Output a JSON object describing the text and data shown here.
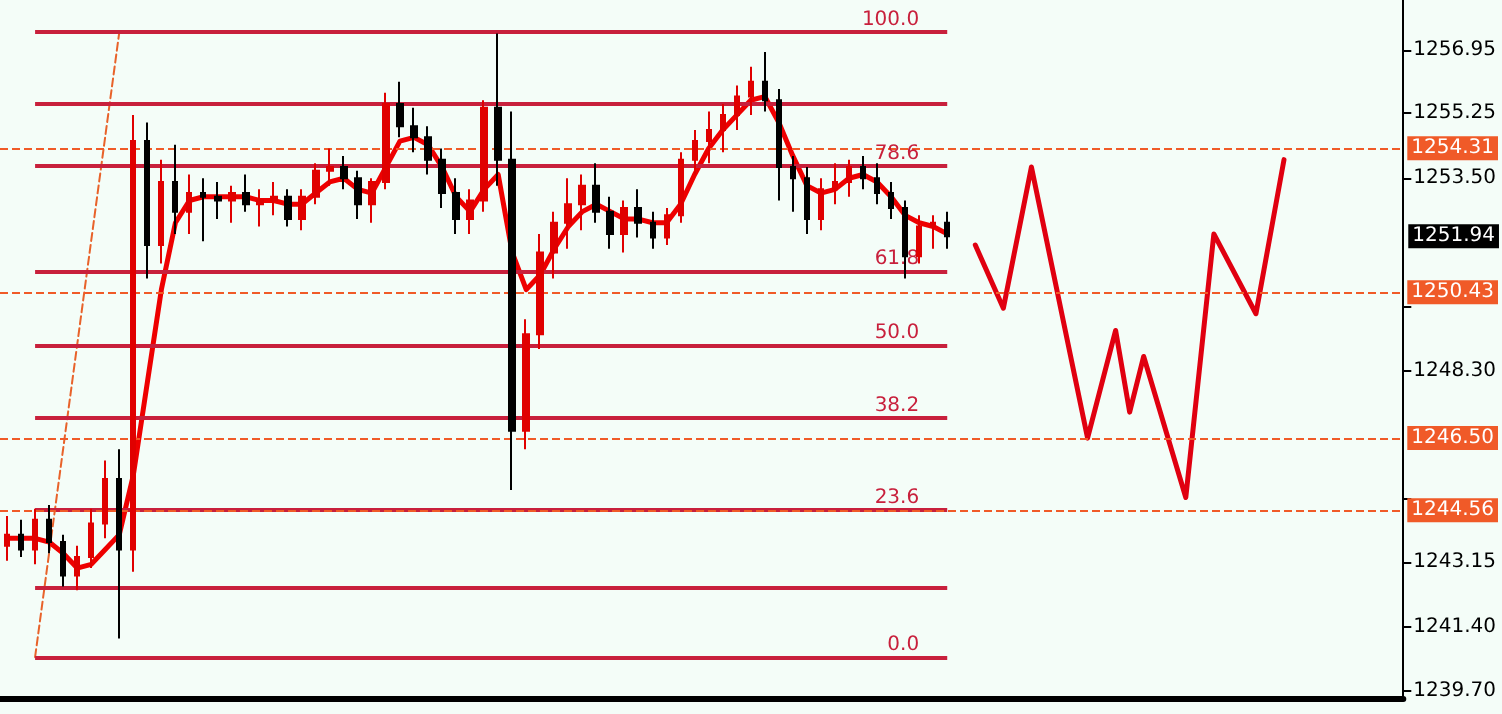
{
  "chart_data": {
    "type": "candlestick",
    "categories": [
      null,
      null,
      null,
      null,
      null,
      null,
      null,
      null,
      null,
      null,
      null,
      null,
      null,
      null,
      null,
      null,
      null,
      null,
      null,
      null,
      null,
      null,
      null,
      null,
      null,
      null,
      null,
      null,
      null,
      null,
      null,
      null,
      null,
      null,
      null,
      null,
      null,
      null,
      null,
      null,
      null,
      null,
      null,
      null,
      null,
      null,
      null,
      null,
      null,
      null,
      null,
      null,
      null,
      null,
      null,
      null,
      null,
      null,
      null,
      null,
      null,
      null,
      null,
      null,
      null,
      null,
      null,
      null,
      null,
      null,
      null,
      null,
      null,
      null,
      null,
      null,
      null,
      null,
      null,
      null,
      null,
      null,
      null,
      null,
      null,
      null,
      null,
      null,
      null,
      null,
      null,
      null,
      null,
      null,
      null,
      null,
      null,
      null,
      null,
      null
    ],
    "ylim": [
      1239.5,
      1258.3
    ],
    "yticks": [
      1256.95,
      1255.25,
      {
        "value": 1253.5,
        "label": "1253.50"
      },
      {
        "value": 1250.05,
        "label": null
      },
      {
        "value": 1248.3,
        "label": "1248.30"
      },
      {
        "value": 1244.85,
        "label": null
      },
      1243.15,
      {
        "value": 1241.4,
        "label": "1241.40"
      },
      {
        "value": 1239.7,
        "label": "1239.70"
      }
    ],
    "tick_labels": "y",
    "grid": false,
    "series": [
      {
        "colors": [
          "#e00000",
          "#000000",
          "#e00000",
          "#000000",
          "#000000",
          "#e00000",
          "#e00000",
          "#e00000",
          "#000000",
          "#e00000",
          "#000000",
          "#e00000",
          "#000000",
          "#e00000",
          "#000000",
          "#000000",
          "#e00000",
          "#000000",
          "#e00000",
          "#e00000",
          "#000000",
          "#e00000",
          "#e00000",
          "#e00000",
          "#000000",
          "#000000",
          "#e00000",
          "#e00000",
          "#000000",
          "#000000",
          "#000000",
          "#000000",
          "#000000",
          "#e00000",
          "#e00000",
          "#000000",
          "#000000",
          "#e00000",
          "#e00000",
          "#e00000",
          "#e00000",
          "#e00000",
          "#000000",
          "#000000",
          "#e00000",
          "#000000",
          "#000000",
          "#e00000",
          "#e00000",
          "#e00000",
          "#e00000",
          "#e00000",
          "#e00000",
          "#e00000",
          "#000000",
          "#000000",
          "#000000",
          "#000000",
          "#e00000",
          "#e00000",
          "#e00000",
          "#000000",
          "#000000",
          "#000000",
          "#000000",
          "#e00000",
          "#e00000",
          "#000000",
          null,
          null,
          null,
          null,
          null,
          null,
          null,
          null,
          null,
          null,
          null,
          null,
          null,
          null,
          null,
          null,
          null,
          null,
          null,
          null,
          null,
          null,
          null,
          null,
          null,
          null,
          null,
          null,
          null,
          null,
          null,
          null
        ],
        "ohlc": [
          [
            1243.6,
            1244.4,
            1243.2,
            1243.9
          ],
          [
            1243.9,
            1244.3,
            1243.3,
            1243.5
          ],
          [
            1243.5,
            1244.6,
            1243.1,
            1244.3
          ],
          [
            1244.3,
            1244.7,
            1243.4,
            1243.7
          ],
          [
            1243.7,
            1243.9,
            1242.5,
            1242.8
          ],
          [
            1242.8,
            1243.6,
            1242.4,
            1243.3
          ],
          [
            1243.3,
            1244.6,
            1243.0,
            1244.2
          ],
          [
            1244.2,
            1245.9,
            1243.8,
            1245.4
          ],
          [
            1245.4,
            1246.2,
            1241.1,
            1243.5
          ],
          [
            1243.5,
            1255.2,
            1242.9,
            1254.5
          ],
          [
            1254.5,
            1255.0,
            1250.8,
            1251.7
          ],
          [
            1251.7,
            1254.0,
            1251.2,
            1253.4
          ],
          [
            1253.4,
            1254.4,
            1252.0,
            1252.6
          ],
          [
            1252.6,
            1253.6,
            1252.0,
            1253.1
          ],
          [
            1253.1,
            1253.5,
            1251.8,
            1253.0
          ],
          [
            1253.0,
            1253.4,
            1252.4,
            1252.9
          ],
          [
            1252.9,
            1253.3,
            1252.3,
            1253.1
          ],
          [
            1253.1,
            1253.6,
            1252.6,
            1252.8
          ],
          [
            1252.8,
            1253.2,
            1252.2,
            1252.9
          ],
          [
            1252.9,
            1253.4,
            1252.5,
            1253.0
          ],
          [
            1253.0,
            1253.2,
            1252.2,
            1252.4
          ],
          [
            1252.4,
            1253.2,
            1252.1,
            1253.0
          ],
          [
            1253.0,
            1253.9,
            1252.8,
            1253.7
          ],
          [
            1253.7,
            1254.3,
            1253.3,
            1253.8
          ],
          [
            1253.8,
            1254.1,
            1253.2,
            1253.5
          ],
          [
            1253.5,
            1253.7,
            1252.4,
            1252.8
          ],
          [
            1252.8,
            1253.5,
            1252.3,
            1253.4
          ],
          [
            1253.4,
            1255.8,
            1253.2,
            1255.5
          ],
          [
            1255.5,
            1256.1,
            1254.6,
            1254.9
          ],
          [
            1254.9,
            1255.4,
            1254.2,
            1254.6
          ],
          [
            1254.6,
            1254.9,
            1253.6,
            1254.0
          ],
          [
            1254.0,
            1254.3,
            1252.7,
            1253.1
          ],
          [
            1253.1,
            1253.5,
            1252.0,
            1252.4
          ],
          [
            1252.4,
            1253.2,
            1252.0,
            1252.9
          ],
          [
            1252.9,
            1255.6,
            1252.6,
            1255.4
          ],
          [
            1255.4,
            1257.4,
            1253.3,
            1254.0
          ],
          [
            1254.0,
            1255.3,
            1245.1,
            1246.7
          ],
          [
            1246.7,
            1249.7,
            1246.2,
            1249.3
          ],
          [
            1249.3,
            1252.0,
            1248.9,
            1251.5
          ],
          [
            1251.5,
            1252.6,
            1250.8,
            1252.3
          ],
          [
            1252.3,
            1253.5,
            1251.6,
            1252.8
          ],
          [
            1252.8,
            1253.6,
            1252.1,
            1253.3
          ],
          [
            1253.3,
            1253.9,
            1252.3,
            1252.6
          ],
          [
            1252.6,
            1253.0,
            1251.6,
            1252.0
          ],
          [
            1252.0,
            1252.9,
            1251.5,
            1252.7
          ],
          [
            1252.7,
            1253.2,
            1251.9,
            1252.3
          ],
          [
            1252.3,
            1252.6,
            1251.6,
            1251.9
          ],
          [
            1251.9,
            1252.7,
            1251.7,
            1252.5
          ],
          [
            1252.5,
            1254.2,
            1252.3,
            1254.0
          ],
          [
            1254.0,
            1254.8,
            1253.6,
            1254.5
          ],
          [
            1254.5,
            1255.3,
            1253.9,
            1254.8
          ],
          [
            1254.8,
            1255.5,
            1254.2,
            1255.2
          ],
          [
            1255.2,
            1256.0,
            1254.8,
            1255.7
          ],
          [
            1255.7,
            1256.5,
            1255.2,
            1256.1
          ],
          [
            1256.1,
            1256.9,
            1255.3,
            1255.6
          ],
          [
            1255.6,
            1255.9,
            1252.9,
            1253.8
          ],
          [
            1253.8,
            1254.1,
            1252.6,
            1253.5
          ],
          [
            1253.5,
            1253.8,
            1252.0,
            1252.4
          ],
          [
            1252.4,
            1253.5,
            1252.1,
            1253.2
          ],
          [
            1253.2,
            1253.9,
            1252.8,
            1253.4
          ],
          [
            1253.4,
            1254.0,
            1253.0,
            1253.8
          ],
          [
            1253.8,
            1254.1,
            1253.2,
            1253.5
          ],
          [
            1253.5,
            1253.9,
            1252.8,
            1253.1
          ],
          [
            1253.1,
            1253.4,
            1252.4,
            1252.7
          ],
          [
            1252.7,
            1252.9,
            1250.8,
            1251.4
          ],
          [
            1251.4,
            1252.5,
            1251.2,
            1252.2
          ],
          [
            1252.2,
            1252.5,
            1251.6,
            1252.3
          ],
          [
            1252.3,
            1252.6,
            1251.6,
            1251.94
          ],
          null,
          null,
          null,
          null,
          null,
          null,
          null,
          null,
          null,
          null,
          null,
          null,
          null,
          null,
          null,
          null,
          null,
          null,
          null,
          null,
          null,
          null,
          null,
          null,
          null,
          null,
          null,
          null,
          null,
          null,
          null,
          null
        ]
      },
      {
        "type": "line",
        "color": "#ee0000",
        "values": [
          1243.8,
          1243.8,
          1243.8,
          1243.7,
          1243.4,
          1243.0,
          1243.1,
          1243.5,
          1243.9,
          1245.5,
          1248.0,
          1250.5,
          1252.3,
          1252.9,
          1253.0,
          1253.0,
          1253.0,
          1253.0,
          1252.9,
          1252.9,
          1252.8,
          1252.8,
          1253.1,
          1253.4,
          1253.5,
          1253.2,
          1253.1,
          1253.8,
          1254.5,
          1254.6,
          1254.4,
          1253.8,
          1253.0,
          1252.6,
          1253.2,
          1253.6,
          1251.5,
          1250.5,
          1250.9,
          1251.6,
          1252.2,
          1252.6,
          1252.8,
          1252.6,
          1252.4,
          1252.4,
          1252.3,
          1252.3,
          1252.8,
          1253.6,
          1254.3,
          1254.8,
          1255.2,
          1255.6,
          1255.7,
          1255.0,
          1254.1,
          1253.3,
          1253.1,
          1253.2,
          1253.5,
          1253.6,
          1253.4,
          1253.0,
          1252.5,
          1252.3,
          1252.2,
          1252.0,
          null,
          null,
          null,
          null,
          null,
          null,
          null,
          null,
          null,
          null,
          null,
          null,
          null,
          null,
          null,
          null,
          null,
          null,
          null,
          null,
          null,
          null,
          null,
          null,
          null,
          null,
          null,
          null,
          null,
          null,
          null,
          null
        ]
      },
      {
        "type": "line",
        "color": "#e8622a",
        "line_style": "dashed",
        "values": [
          null,
          null,
          1240.6,
          null,
          null,
          null,
          null,
          null,
          1257.43,
          null,
          null,
          null,
          null,
          null,
          null,
          null,
          null,
          null,
          null,
          null,
          null,
          null,
          null,
          null,
          null,
          null,
          null,
          null,
          null,
          null,
          null,
          null,
          null,
          null,
          null,
          null,
          null,
          null,
          null,
          null,
          null,
          null,
          null,
          null,
          null,
          null,
          null,
          null,
          null,
          null,
          null,
          null,
          null,
          null,
          null,
          null,
          null,
          null,
          null,
          null,
          null,
          null,
          null,
          null,
          null,
          null,
          null,
          null,
          null,
          null,
          null,
          null,
          null,
          null,
          null,
          null,
          null,
          null,
          null,
          null,
          null,
          null,
          null,
          null,
          null,
          null,
          null,
          null,
          null,
          null,
          null,
          null,
          null,
          null,
          null,
          null,
          null,
          null,
          null,
          null
        ]
      },
      {
        "type": "line",
        "color": "#e00010",
        "values": [
          null,
          null,
          null,
          null,
          null,
          null,
          null,
          null,
          null,
          null,
          null,
          null,
          null,
          null,
          null,
          null,
          null,
          null,
          null,
          null,
          null,
          null,
          null,
          null,
          null,
          null,
          null,
          null,
          null,
          null,
          null,
          null,
          null,
          null,
          null,
          null,
          null,
          null,
          null,
          null,
          null,
          null,
          null,
          null,
          null,
          null,
          null,
          null,
          null,
          null,
          null,
          null,
          null,
          null,
          null,
          null,
          null,
          null,
          null,
          null,
          null,
          null,
          null,
          null,
          null,
          null,
          null,
          null,
          null,
          1251.7,
          null,
          1250.0,
          null,
          1253.8,
          null,
          null,
          null,
          1246.5,
          null,
          1249.4,
          1247.2,
          1248.7,
          null,
          null,
          1244.9,
          null,
          1252.0,
          null,
          null,
          1249.85,
          null,
          1254.0,
          null,
          null,
          null,
          null,
          null,
          null,
          null,
          null
        ]
      }
    ],
    "ref_lines": [
      {
        "axis": "y",
        "value": 1257.43,
        "color": "#c8203c",
        "line_style": "solid"
      },
      {
        "axis": "y",
        "value": 1255.51,
        "color": "#c8203c",
        "line_style": "solid"
      },
      {
        "axis": "y",
        "value": 1253.83,
        "color": "#c8203c",
        "line_style": "solid"
      },
      {
        "axis": "y",
        "value": 1251.0,
        "color": "#c8203c",
        "line_style": "solid"
      },
      {
        "axis": "y",
        "value": 1249.02,
        "color": "#c8203c",
        "line_style": "solid"
      },
      {
        "axis": "y",
        "value": 1247.03,
        "color": "#c8203c",
        "line_style": "solid"
      },
      {
        "axis": "y",
        "value": 1244.57,
        "color": "#c8203c",
        "line_style": "solid"
      },
      {
        "axis": "y",
        "value": 1242.5,
        "color": "#c8203c",
        "line_style": "solid"
      },
      {
        "axis": "y",
        "value": 1240.6,
        "color": "#c8203c",
        "line_style": "solid"
      },
      {
        "axis": "y",
        "value": 1254.31,
        "label": "1254.31",
        "color": "#f05a28",
        "line_style": "dashed"
      },
      {
        "axis": "y",
        "value": 1250.43,
        "label": "1250.43",
        "color": "#f05a28",
        "line_style": "dashed"
      },
      {
        "axis": "y",
        "value": 1246.5,
        "label": "1246.50",
        "color": "#f05a28",
        "line_style": "dashed"
      },
      {
        "axis": "y",
        "value": 1244.56,
        "label": "1244.56",
        "color": "#f05a28",
        "line_style": "dashed"
      }
    ],
    "annotations": [
      {
        "text": "100.0",
        "y": 1257.43
      },
      {
        "text": "78.6",
        "y": 1253.83
      },
      {
        "text": "61.8",
        "y": 1251.0
      },
      {
        "text": "50.0",
        "y": 1249.02
      },
      {
        "text": "38.2",
        "y": 1247.03
      },
      {
        "text": "23.6",
        "y": 1244.57
      },
      {
        "text": "0.0",
        "y": 1240.6
      },
      "1251.94"
    ]
  }
}
